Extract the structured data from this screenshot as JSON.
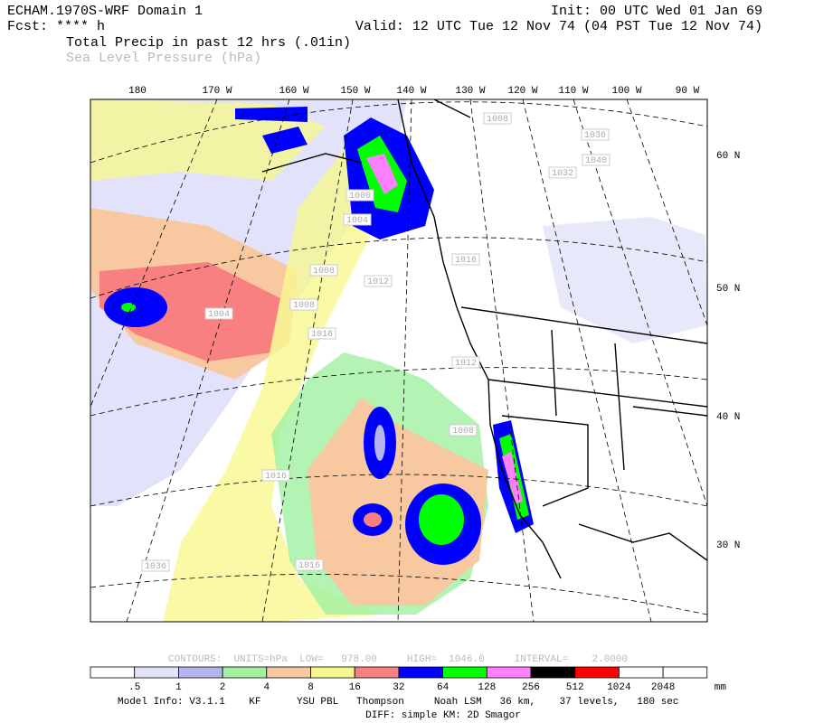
{
  "header": {
    "model": "ECHAM.1970S-WRF Domain 1",
    "init": "Init: 00 UTC Wed 01 Jan 69",
    "forecast": "Fcst: **** h",
    "valid": "Valid: 12 UTC Tue 12 Nov 74 (04 PST Tue 12 Nov 74)",
    "field1": "Total Precip in past 12 hrs (.01in)",
    "field2": "Sea Level Pressure (hPa)"
  },
  "map": {
    "longitude_labels": [
      "180",
      "170 W",
      "160 W",
      "150 W",
      "140 W",
      "130 W",
      "120 W",
      "110 W",
      "100 W",
      "90 W"
    ],
    "latitude_labels": [
      "60 N",
      "50 N",
      "40 N",
      "30 N"
    ],
    "contour_labels": [
      "1004",
      "1000",
      "1004",
      "1008",
      "1012",
      "1008",
      "1016",
      "1012",
      "1016",
      "1008",
      "1016",
      "1016",
      "1036",
      "1040",
      "1036",
      "1032",
      "1008"
    ]
  },
  "contours_info": "CONTOURS:  UNITS=hPa  LOW=   978.00     HIGH=  1046.0     INTERVAL=    2.0000",
  "colorbar": {
    "colors": [
      "#ffffff",
      "#e2e2fa",
      "#b4b4f0",
      "#a0f0a0",
      "#f8c8a0",
      "#f8f890",
      "#f88080",
      "#0000ff",
      "#00ff00",
      "#ff80ff",
      "#000000",
      "#ff0000",
      "#ffffff",
      "#ffffff"
    ],
    "labels": [
      ".5",
      "1",
      "2",
      "4",
      "8",
      "16",
      "32",
      "64",
      "128",
      "256",
      "512",
      "1024",
      "2048"
    ],
    "units": "mm"
  },
  "footer": {
    "model_info": "Model Info: V3.1.1    KF      YSU PBL   Thompson     Noah LSM   36 km,    37 levels,   180 sec",
    "diff": "DIFF: simple KM: 2D Smagor"
  }
}
